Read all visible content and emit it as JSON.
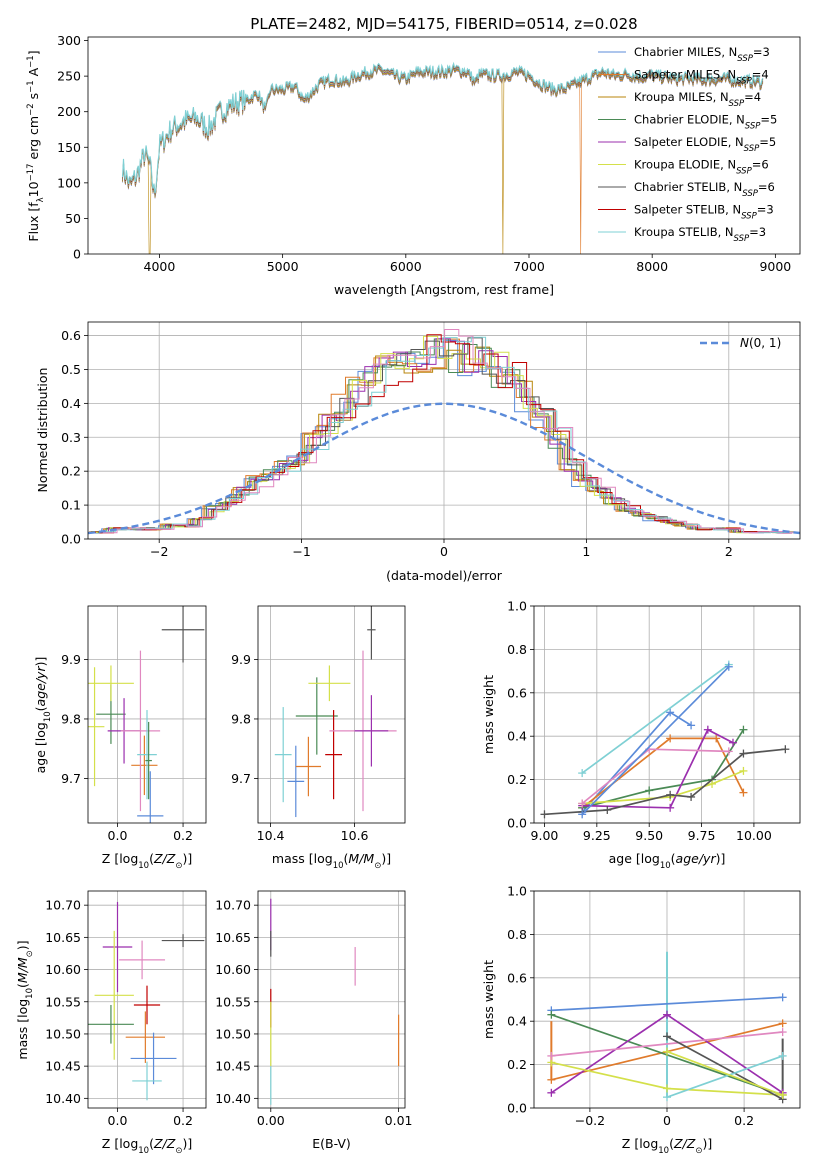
{
  "figure_title": "PLATE=2482, MJD=54175, FIBERID=0514, z=0.028",
  "colors": {
    "Chabrier MILES": "#5b8bd9",
    "Salpeter MILES": "#e07b2c",
    "Kroupa MILES": "#b8860b",
    "Chabrier ELODIE": "#4a8a55",
    "Salpeter ELODIE": "#9b2fae",
    "Kroupa ELODIE": "#d4e04a",
    "Chabrier STELIB": "#555555",
    "Salpeter STELIB": "#c00000",
    "Kroupa STELIB": "#7fd0d4",
    "pink": "#e088c0",
    "gauss": "#5b8bd9"
  },
  "chart_data": [
    {
      "type": "line",
      "title": "PLATE=2482, MJD=54175, FIBERID=0514, z=0.028",
      "xlabel": "wavelength [Angstrom, rest frame]",
      "ylabel": "Flux [f_λ 10^-17 erg cm^-2 s^-1 A^-1]",
      "xlim": [
        3420,
        9200
      ],
      "ylim": [
        0,
        305
      ],
      "xticks": [
        4000,
        5000,
        6000,
        7000,
        8000,
        9000
      ],
      "yticks": [
        0,
        50,
        100,
        150,
        200,
        250,
        300
      ],
      "legend": [
        "Chabrier MILES, N_SSP=3",
        "Salpeter MILES, N_SSP=4",
        "Kroupa MILES, N_SSP=4",
        "Chabrier ELODIE, N_SSP=5",
        "Salpeter ELODIE, N_SSP=5",
        "Kroupa ELODIE, N_SSP=6",
        "Chabrier STELIB, N_SSP=6",
        "Salpeter STELIB, N_SSP=3",
        "Kroupa STELIB, N_SSP=3"
      ],
      "legend_loc": "upper right",
      "grid": false,
      "spectrum_x": [
        3700,
        3760,
        3820,
        3880,
        3920,
        3960,
        4000,
        4100,
        4200,
        4300,
        4400,
        4500,
        4600,
        4700,
        4800,
        4861,
        4900,
        5000,
        5100,
        5175,
        5300,
        5400,
        5500,
        5600,
        5700,
        5800,
        5900,
        6000,
        6100,
        6200,
        6300,
        6400,
        6500,
        6563,
        6600,
        6700,
        6800,
        6900,
        7000,
        7100,
        7200,
        7300,
        7400,
        7500,
        7600,
        7700,
        7800,
        7900,
        8000,
        8100,
        8200,
        8300,
        8400,
        8500,
        8600,
        8700,
        8800,
        8900
      ],
      "spectrum_y": [
        120,
        95,
        110,
        140,
        125,
        80,
        150,
        175,
        185,
        190,
        175,
        200,
        210,
        215,
        225,
        200,
        230,
        230,
        235,
        215,
        238,
        245,
        240,
        250,
        255,
        258,
        250,
        245,
        255,
        255,
        255,
        258,
        255,
        240,
        252,
        250,
        250,
        255,
        250,
        238,
        230,
        232,
        240,
        248,
        255,
        250,
        252,
        248,
        250,
        248,
        245,
        246,
        244,
        245,
        245,
        243,
        242,
        240
      ],
      "drops": [
        {
          "series": "Kroupa MILES",
          "x": 3920
        },
        {
          "series": "Kroupa MILES",
          "x": 6790
        },
        {
          "series": "Salpeter MILES",
          "x": 7420
        }
      ]
    },
    {
      "type": "step",
      "xlabel": "(data-model)/error",
      "ylabel": "Normed distribution",
      "xlim": [
        -2.5,
        2.5
      ],
      "ylim": [
        0,
        0.64
      ],
      "xticks": [
        -2,
        -1,
        0,
        1,
        2
      ],
      "yticks": [
        0.0,
        0.1,
        0.2,
        0.3,
        0.4,
        0.5,
        0.6
      ],
      "grid": true,
      "legend": [
        "N(0,1)"
      ],
      "legend_loc": "upper right",
      "bin_width": 0.1,
      "bin_centers": [
        -2.4,
        -2.3,
        -2.2,
        -2.1,
        -2.0,
        -1.9,
        -1.8,
        -1.7,
        -1.6,
        -1.5,
        -1.4,
        -1.3,
        -1.2,
        -1.1,
        -1.0,
        -0.9,
        -0.8,
        -0.7,
        -0.6,
        -0.5,
        -0.4,
        -0.3,
        -0.2,
        -0.1,
        0.0,
        0.1,
        0.2,
        0.3,
        0.4,
        0.5,
        0.6,
        0.7,
        0.8,
        0.9,
        1.0,
        1.1,
        1.2,
        1.3,
        1.4,
        1.5,
        1.6,
        1.7,
        1.8,
        1.9,
        2.0,
        2.1,
        2.2,
        2.3,
        2.4
      ],
      "histogram_base": [
        0.02,
        0.03,
        0.03,
        0.03,
        0.03,
        0.04,
        0.04,
        0.06,
        0.09,
        0.11,
        0.14,
        0.17,
        0.19,
        0.22,
        0.24,
        0.29,
        0.34,
        0.39,
        0.43,
        0.47,
        0.5,
        0.52,
        0.55,
        0.55,
        0.56,
        0.55,
        0.54,
        0.53,
        0.5,
        0.47,
        0.42,
        0.36,
        0.3,
        0.22,
        0.17,
        0.14,
        0.11,
        0.09,
        0.07,
        0.06,
        0.05,
        0.04,
        0.03,
        0.03,
        0.03,
        0.02,
        0.02,
        0.02,
        0.02
      ],
      "gaussian": "N(0,1)"
    },
    {
      "type": "errorbar",
      "xlabel": "Z [log10(Z/Z⊙)]",
      "ylabel": "age [log10(age/yr)]",
      "xlim": [
        -0.09,
        0.27
      ],
      "ylim": [
        9.625,
        9.99
      ],
      "xticks": [
        0.0,
        0.2
      ],
      "yticks": [
        9.7,
        9.8,
        9.9
      ],
      "grid": true,
      "points": [
        {
          "series": "Chabrier MILES",
          "x": 0.1,
          "y": 9.637,
          "xerr": 0.04,
          "yerr": 0.075
        },
        {
          "series": "Salpeter MILES",
          "x": 0.082,
          "y": 9.722,
          "xerr": 0.04,
          "yerr": 0.05
        },
        {
          "series": "Kroupa ELODIE",
          "x": -0.07,
          "y": 9.787,
          "xerr": 0.03,
          "yerr": 0.1
        },
        {
          "series": "Chabrier ELODIE",
          "x": -0.02,
          "y": 9.808,
          "xerr": 0.045,
          "yerr": 0.05
        },
        {
          "series": "Salpeter ELODIE",
          "x": 0.02,
          "y": 9.78,
          "xerr": 0.05,
          "yerr": 0.055
        },
        {
          "series": "Kroupa ELODIE",
          "x": -0.02,
          "y": 9.86,
          "xerr": 0.07,
          "yerr": 0.03
        },
        {
          "series": "pink",
          "x": 0.07,
          "y": 9.78,
          "xerr": 0.06,
          "yerr": 0.135
        },
        {
          "series": "Kroupa STELIB",
          "x": 0.09,
          "y": 9.74,
          "xerr": 0.03,
          "yerr": 0.075
        },
        {
          "series": "Chabrier STELIB",
          "x": 0.2,
          "y": 9.95,
          "xerr": 0.065,
          "yerr": 0.055
        },
        {
          "series": "Chabrier ELODIE",
          "x": 0.095,
          "y": 9.73,
          "xerr": 0.01,
          "yerr": 0.065
        }
      ]
    },
    {
      "type": "errorbar",
      "xlabel": "mass [log10(M/M⊙)]",
      "xlim": [
        10.37,
        10.72
      ],
      "ylim": [
        9.625,
        9.99
      ],
      "xticks": [
        10.4,
        10.6
      ],
      "yticks": [
        9.7,
        9.8,
        9.9
      ],
      "grid": true,
      "points": [
        {
          "series": "Chabrier MILES",
          "x": 10.46,
          "y": 9.695,
          "xerr": 0.02,
          "yerr": 0.06
        },
        {
          "series": "Salpeter MILES",
          "x": 10.49,
          "y": 9.72,
          "xerr": 0.03,
          "yerr": 0.05
        },
        {
          "series": "Kroupa STELIB",
          "x": 10.43,
          "y": 9.74,
          "xerr": 0.02,
          "yerr": 0.08
        },
        {
          "series": "Chabrier ELODIE",
          "x": 10.51,
          "y": 9.805,
          "xerr": 0.05,
          "yerr": 0.065
        },
        {
          "series": "Kroupa ELODIE",
          "x": 10.54,
          "y": 9.86,
          "xerr": 0.05,
          "yerr": 0.03
        },
        {
          "series": "Salpeter STELIB",
          "x": 10.55,
          "y": 9.74,
          "xerr": 0.02,
          "yerr": 0.075
        },
        {
          "series": "pink",
          "x": 10.62,
          "y": 9.78,
          "xerr": 0.08,
          "yerr": 0.135
        },
        {
          "series": "Chabrier STELIB",
          "x": 10.64,
          "y": 9.95,
          "xerr": 0.01,
          "yerr": 0.05
        },
        {
          "series": "Salpeter ELODIE",
          "x": 10.64,
          "y": 9.78,
          "xerr": 0.04,
          "yerr": 0.06
        }
      ]
    },
    {
      "type": "line",
      "xlabel": "age [log10(age/yr)]",
      "ylabel": "mass weight",
      "xlim": [
        8.95,
        10.22
      ],
      "ylim": [
        0,
        1.0
      ],
      "xticks": [
        9.0,
        9.25,
        9.5,
        9.75,
        10.0
      ],
      "yticks": [
        0.0,
        0.2,
        0.4,
        0.6,
        0.8,
        1.0
      ],
      "grid": true,
      "series": [
        {
          "name": "Chabrier MILES",
          "x": [
            9.18,
            9.6,
            9.7
          ],
          "y": [
            0.05,
            0.51,
            0.45
          ]
        },
        {
          "name": "Salpeter MILES",
          "x": [
            9.18,
            9.6,
            9.82,
            9.95
          ],
          "y": [
            0.07,
            0.39,
            0.39,
            0.14
          ]
        },
        {
          "name": "Chabrier ELODIE",
          "x": [
            9.18,
            9.5,
            9.8,
            9.95
          ],
          "y": [
            0.07,
            0.15,
            0.2,
            0.43
          ]
        },
        {
          "name": "Salpeter ELODIE",
          "x": [
            9.18,
            9.6,
            9.78,
            9.9
          ],
          "y": [
            0.08,
            0.07,
            0.43,
            0.37
          ]
        },
        {
          "name": "Kroupa ELODIE",
          "x": [
            9.18,
            9.6,
            9.8,
            9.95
          ],
          "y": [
            0.09,
            0.12,
            0.18,
            0.24
          ]
        },
        {
          "name": "pink",
          "x": [
            9.18,
            9.5,
            9.88
          ],
          "y": [
            0.09,
            0.34,
            0.33
          ]
        },
        {
          "name": "Chabrier STELIB",
          "x": [
            9.0,
            9.3,
            9.6,
            9.7,
            9.95,
            10.15
          ],
          "y": [
            0.04,
            0.06,
            0.13,
            0.12,
            0.32,
            0.34
          ]
        },
        {
          "name": "Kroupa STELIB",
          "x": [
            9.18,
            9.88
          ],
          "y": [
            0.23,
            0.73
          ]
        },
        {
          "name": "Chabrier MILES",
          "x": [
            9.18,
            9.88
          ],
          "y": [
            0.04,
            0.72
          ]
        }
      ]
    },
    {
      "type": "errorbar",
      "xlabel": "Z [log10(Z/Z⊙)]",
      "ylabel": "mass [log10(M/M⊙)]",
      "xlim": [
        -0.09,
        0.27
      ],
      "ylim": [
        10.385,
        10.722
      ],
      "xticks": [
        0.0,
        0.2
      ],
      "yticks": [
        10.4,
        10.45,
        10.5,
        10.55,
        10.6,
        10.65,
        10.7
      ],
      "grid": true,
      "points": [
        {
          "series": "Salpeter ELODIE",
          "x": 0.0,
          "y": 10.635,
          "xerr": 0.045,
          "yerr": 0.07
        },
        {
          "series": "Chabrier STELIB",
          "x": 0.2,
          "y": 10.645,
          "xerr": 0.065,
          "yerr": 0.01
        },
        {
          "series": "pink",
          "x": 0.075,
          "y": 10.615,
          "xerr": 0.07,
          "yerr": 0.03
        },
        {
          "series": "Kroupa ELODIE",
          "x": -0.01,
          "y": 10.56,
          "xerr": 0.06,
          "yerr": 0.1
        },
        {
          "series": "Salpeter STELIB",
          "x": 0.09,
          "y": 10.545,
          "xerr": 0.04,
          "yerr": 0.03
        },
        {
          "series": "Chabrier ELODIE",
          "x": -0.02,
          "y": 10.515,
          "xerr": 0.07,
          "yerr": 0.03
        },
        {
          "series": "Salpeter MILES",
          "x": 0.085,
          "y": 10.495,
          "xerr": 0.06,
          "yerr": 0.04
        },
        {
          "series": "Chabrier MILES",
          "x": 0.11,
          "y": 10.462,
          "xerr": 0.07,
          "yerr": 0.04
        },
        {
          "series": "Kroupa STELIB",
          "x": 0.09,
          "y": 10.427,
          "xerr": 0.045,
          "yerr": 0.03
        }
      ]
    },
    {
      "type": "errorbar",
      "xlabel": "E(B-V)",
      "xlim": [
        -0.001,
        0.0105
      ],
      "ylim": [
        10.385,
        10.722
      ],
      "xticks": [
        0.0,
        0.01
      ],
      "xtick_labels": [
        "0.00",
        "0.01"
      ],
      "yticks": [
        10.4,
        10.45,
        10.5,
        10.55,
        10.6,
        10.65,
        10.7
      ],
      "grid": true,
      "points": [
        {
          "series": "Salpeter ELODIE",
          "x": 0.0,
          "y": 10.67,
          "xerr": 0.0,
          "yerr": 0.04
        },
        {
          "series": "Chabrier STELIB",
          "x": 0.0,
          "y": 10.64,
          "xerr": 0.0,
          "yerr": 0.02
        },
        {
          "series": "Salpeter STELIB",
          "x": 0.0,
          "y": 10.54,
          "xerr": 0.0,
          "yerr": 0.03
        },
        {
          "series": "Kroupa ELODIE",
          "x": 0.0,
          "y": 10.5,
          "xerr": 0.0,
          "yerr": 0.05
        },
        {
          "series": "Kroupa STELIB",
          "x": 0.0,
          "y": 10.42,
          "xerr": 0.0,
          "yerr": 0.03
        },
        {
          "series": "pink",
          "x": 0.0066,
          "y": 10.605,
          "xerr": 0.0,
          "yerr": 0.03
        },
        {
          "series": "Salpeter MILES",
          "x": 0.01,
          "y": 10.49,
          "xerr": 0.0,
          "yerr": 0.04
        }
      ]
    },
    {
      "type": "line",
      "xlabel": "Z [log10(Z/Z⊙)]",
      "ylabel": "mass weight",
      "xlim": [
        -0.345,
        0.345
      ],
      "ylim": [
        0,
        1.0
      ],
      "xticks": [
        -0.2,
        0.0,
        0.2
      ],
      "yticks": [
        0.0,
        0.2,
        0.4,
        0.6,
        0.8,
        1.0
      ],
      "grid": true,
      "series": [
        {
          "name": "Chabrier MILES",
          "x": [
            -0.3,
            0.3
          ],
          "y": [
            0.45,
            0.51
          ]
        },
        {
          "name": "Salpeter MILES",
          "x": [
            -0.3,
            0.3
          ],
          "y": [
            0.13,
            0.39
          ]
        },
        {
          "name": "Chabrier ELODIE",
          "x": [
            -0.3,
            0.3
          ],
          "y": [
            0.43,
            0.06
          ]
        },
        {
          "name": "Salpeter ELODIE",
          "x": [
            -0.3,
            0.0,
            0.3
          ],
          "y": [
            0.07,
            0.43,
            0.07
          ]
        },
        {
          "name": "Kroupa ELODIE",
          "x": [
            -0.3,
            0.0,
            0.3
          ],
          "y": [
            0.21,
            0.09,
            0.06
          ]
        },
        {
          "name": "pink",
          "x": [
            -0.3,
            0.3
          ],
          "y": [
            0.24,
            0.35
          ]
        },
        {
          "name": "Chabrier STELIB",
          "x": [
            0.0,
            0.3
          ],
          "y": [
            0.33,
            0.04
          ]
        },
        {
          "name": "Kroupa STELIB",
          "x": [
            0.0,
            0.3
          ],
          "y": [
            0.05,
            0.24
          ]
        },
        {
          "name": "Kroupa ELODIE",
          "x": [
            0.0,
            0.3
          ],
          "y": [
            0.26,
            0.06
          ]
        }
      ],
      "vertical_bars": [
        {
          "series": "Salpeter MILES",
          "x": -0.3,
          "y": [
            0.13,
            0.4
          ]
        },
        {
          "series": "Kroupa STELIB",
          "x": 0.0,
          "y": [
            0.05,
            0.72
          ]
        },
        {
          "series": "Chabrier STELIB",
          "x": 0.3,
          "y": [
            0.04,
            0.32
          ]
        }
      ]
    }
  ]
}
